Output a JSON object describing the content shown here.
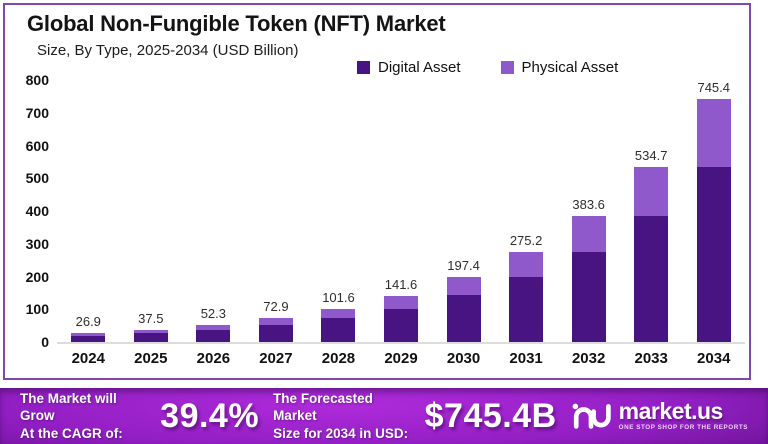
{
  "header": {
    "title": "Global Non-Fungible Token (NFT) Market",
    "subtitle": "Size, By Type, 2025-2034 (USD Billion)"
  },
  "legend": [
    {
      "label": "Digital Asset",
      "color": "#471482"
    },
    {
      "label": "Physical Asset",
      "color": "#8f58cb"
    }
  ],
  "chart_data": {
    "type": "bar",
    "stacked": true,
    "title": "Global Non-Fungible Token (NFT) Market",
    "subtitle": "Size, By Type, 2025-2034 (USD Billion)",
    "xlabel": "",
    "ylabel": "USD Billion",
    "ylim": [
      0,
      800
    ],
    "yticks": [
      0,
      100,
      200,
      300,
      400,
      500,
      600,
      700,
      800
    ],
    "grid": false,
    "legend_position": "top-right",
    "categories": [
      "2024",
      "2025",
      "2026",
      "2027",
      "2028",
      "2029",
      "2030",
      "2031",
      "2032",
      "2033",
      "2034"
    ],
    "totals": [
      26.9,
      37.5,
      52.3,
      72.9,
      101.6,
      141.6,
      197.4,
      275.2,
      383.6,
      534.7,
      745.4
    ],
    "total_labels": [
      "26.9",
      "37.5",
      "52.3",
      "72.9",
      "101.6",
      "141.6",
      "197.4",
      "275.2",
      "383.6",
      "534.7",
      "745.4"
    ],
    "series": [
      {
        "name": "Digital Asset",
        "color": "#471482",
        "values": [
          19.3,
          27.0,
          37.7,
          52.5,
          73.2,
          101.9,
          142.1,
          198.1,
          276.2,
          385.0,
          536.7
        ],
        "note": "segment values estimated from bar geometry; only totals are labeled"
      },
      {
        "name": "Physical Asset",
        "color": "#8f58cb",
        "values": [
          7.6,
          10.5,
          14.6,
          20.4,
          28.4,
          39.7,
          55.3,
          77.1,
          107.4,
          149.7,
          208.7
        ],
        "note": "segment values estimated from bar geometry; only totals are labeled"
      }
    ]
  },
  "footer": {
    "cagr_label_line1": "The Market will Grow",
    "cagr_label_line2": "At the CAGR of:",
    "cagr_value": "39.4%",
    "forecast_label_line1": "The Forecasted Market",
    "forecast_label_line2": "Size for 2034 in USD:",
    "forecast_value": "$745.4B",
    "brand": "market.us",
    "brand_tagline": "ONE STOP SHOP FOR THE REPORTS"
  },
  "colors": {
    "digital_asset": "#471482",
    "physical_asset": "#8f58cb",
    "frame_border": "#8247ad",
    "banner_purple": "#931fc4"
  }
}
